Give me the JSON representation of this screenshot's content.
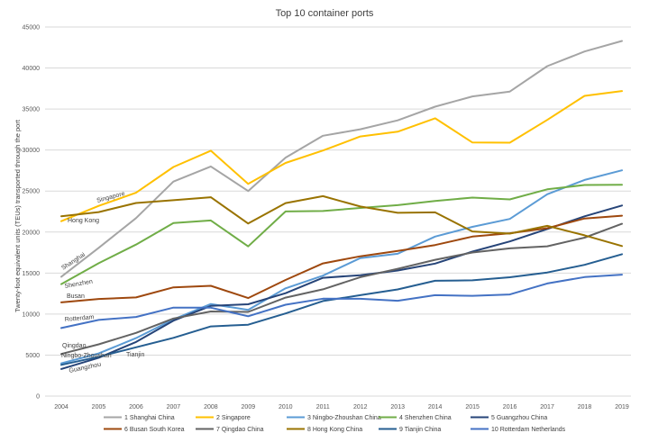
{
  "chart_data": {
    "type": "line",
    "title": "Top 10 container ports",
    "xlabel": "",
    "ylabel": "Twenty-foot equivalent units (TEUs) transported through the port",
    "x": [
      "2004",
      "2005",
      "2006",
      "2007",
      "2008",
      "2009",
      "2010",
      "2011",
      "2012",
      "2013",
      "2014",
      "2015",
      "2016",
      "2017",
      "2018",
      "2019"
    ],
    "ylim": [
      0,
      45000
    ],
    "yticks": [
      "0",
      "5000",
      "10000",
      "15000",
      "20000",
      "25000",
      "30000",
      "35000",
      "40000",
      "45000"
    ],
    "grid": true,
    "legend_position": "bottom",
    "series": [
      {
        "name": "1 Shanghai  China",
        "color": "#a5a5a5",
        "values": [
          14550,
          18080,
          21700,
          26150,
          28000,
          25000,
          29070,
          31740,
          32530,
          33620,
          35290,
          36540,
          37130,
          40230,
          42010,
          43300
        ]
      },
      {
        "name": "2 Singapore",
        "color": "#ffc000",
        "values": [
          21330,
          23190,
          24790,
          27930,
          29920,
          25870,
          28430,
          29940,
          31650,
          32240,
          33870,
          30920,
          30900,
          33670,
          36600,
          37200
        ]
      },
      {
        "name": "3 Ningbo-Zhoushan  China",
        "color": "#5b9bd5",
        "values": [
          4000,
          5200,
          7070,
          9350,
          11230,
          10500,
          13140,
          14690,
          16830,
          17350,
          19450,
          20630,
          21600,
          24610,
          26350,
          27530
        ]
      },
      {
        "name": "4 Shenzhen  China",
        "color": "#70ad47",
        "values": [
          13650,
          16200,
          18470,
          21100,
          21410,
          18250,
          22510,
          22570,
          22940,
          23280,
          23800,
          24200,
          23980,
          25210,
          25740,
          25770
        ]
      },
      {
        "name": "5 Guangzhou  China",
        "color": "#264478",
        "values": [
          3300,
          4680,
          6600,
          9200,
          11000,
          11200,
          12550,
          14420,
          14740,
          15310,
          16160,
          17620,
          18860,
          20370,
          21920,
          23230
        ]
      },
      {
        "name": "6 Busan  South Korea",
        "color": "#9e480e",
        "values": [
          11430,
          11840,
          12030,
          13260,
          13450,
          11950,
          14160,
          16180,
          17040,
          17690,
          18420,
          19450,
          19850,
          20470,
          21660,
          21990
        ]
      },
      {
        "name": "7 Qingdao  China",
        "color": "#636363",
        "values": [
          5140,
          6310,
          7700,
          9460,
          10320,
          10260,
          12010,
          13020,
          14500,
          15520,
          16620,
          17510,
          18010,
          18260,
          19320,
          21010
        ]
      },
      {
        "name": "8 Hong Kong  China",
        "color": "#997300",
        "values": [
          21930,
          22430,
          23540,
          23880,
          24250,
          21040,
          23530,
          24380,
          23120,
          22350,
          22400,
          20070,
          19810,
          20760,
          19600,
          18300
        ]
      },
      {
        "name": "9 Tianjin  China",
        "color": "#255e91",
        "values": [
          3810,
          4800,
          5950,
          7100,
          8500,
          8700,
          10080,
          11590,
          12300,
          13010,
          14060,
          14110,
          14490,
          15070,
          16000,
          17300
        ]
      },
      {
        "name": "10 Rotterdam  Netherlands",
        "color": "#4472c4",
        "values": [
          8300,
          9290,
          9650,
          10790,
          10780,
          9740,
          11140,
          11880,
          11870,
          11620,
          12300,
          12230,
          12390,
          13730,
          14510,
          14810
        ]
      }
    ],
    "annotations": [
      "Singapore",
      "Hong Kong",
      "Shanghai",
      "Shenzhen",
      "Busan",
      "Rotterdam",
      "Qingdao",
      "Ningbo-Zhoushan",
      "Guangzhou",
      "Tianjin"
    ]
  }
}
